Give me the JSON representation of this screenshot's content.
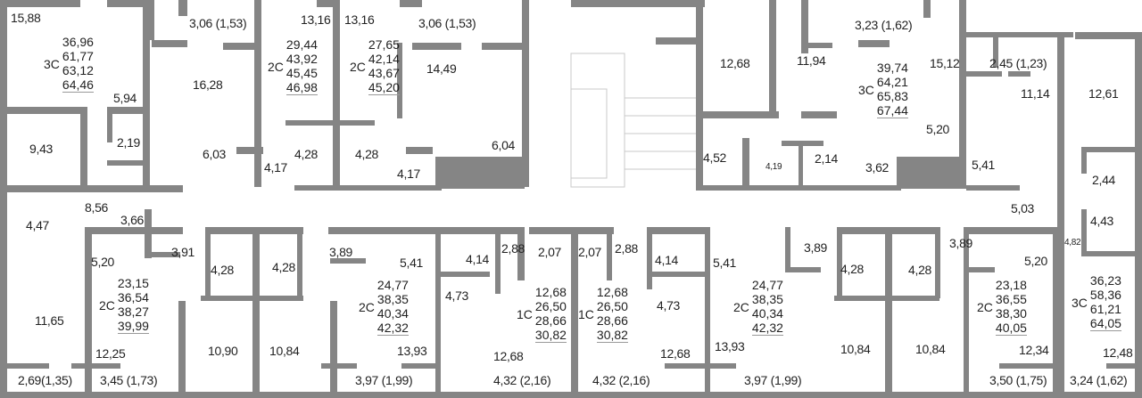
{
  "colors": {
    "wall": "#858585",
    "shaft": "#7d7d7d",
    "text": "#222222"
  },
  "rooms": {
    "r1": "15,88",
    "r2": "3,06 (1,53)",
    "r3": "16,28",
    "r4": "5,94",
    "r5": "9,43",
    "r6": "2,19",
    "r7": "6,03",
    "r8": "13,16",
    "r9": "13,16",
    "r10": "4,17",
    "r11": "4,28",
    "r12": "4,28",
    "r13": "3,06 (1,53)",
    "r14": "14,49",
    "r15": "6,04",
    "r16": "4,17",
    "r17": "12,68",
    "r18": "11,94",
    "r19": "3,23 (1,62)",
    "r20": "15,12",
    "r21": "5,20",
    "r22": "4,52",
    "r23": "4,19",
    "r24": "2,14",
    "r25": "3,62",
    "r26": "5,41",
    "r27": "2,45 (1,23)",
    "r28": "11,14",
    "r29": "12,61",
    "r30": "2,44",
    "r31": "5,03",
    "r32": "4,43",
    "r33": "4,82",
    "b1": "4,47",
    "b2": "8,56",
    "b3": "3,66",
    "b4": "5,20",
    "b5": "3,91",
    "b6": "4,28",
    "b7": "4,28",
    "b8": "11,65",
    "b9": "12,25",
    "b10": "10,90",
    "b11": "10,84",
    "b12": "2,69(1,35)",
    "b13": "3,45 (1,73)",
    "b14": "3,89",
    "b15": "5,41",
    "b16": "4,14",
    "b17": "4,73",
    "b18": "13,93",
    "b19": "3,97 (1,99)",
    "b20": "2,88",
    "b21": "2,07",
    "b22": "12,68",
    "b23": "4,32 (2,16)",
    "b24": "2,07",
    "b25": "2,88",
    "b26": "4,14",
    "b27": "4,73",
    "b28": "12,68",
    "b29": "4,32 (2,16)",
    "b30": "5,41",
    "b31": "3,89",
    "b32": "13,93",
    "b33": "3,97 (1,99)",
    "b34": "4,28",
    "b35": "4,28",
    "b36": "10,84",
    "b37": "10,84",
    "b38": "3,89",
    "b39": "5,20",
    "b40": "12,34",
    "b41": "3,50 (1,75)",
    "b42": "12,48",
    "b43": "3,24 (1,62)"
  },
  "apartments": [
    {
      "type": "3С",
      "areas": [
        "36,96",
        "61,77",
        "63,12",
        "64,46"
      ]
    },
    {
      "type": "2С",
      "areas": [
        "29,44",
        "43,92",
        "45,45",
        "46,98"
      ]
    },
    {
      "type": "2С",
      "areas": [
        "27,65",
        "42,14",
        "43,67",
        "45,20"
      ]
    },
    {
      "type": "3С",
      "areas": [
        "39,74",
        "64,21",
        "65,83",
        "67,44"
      ]
    },
    {
      "type": "2С",
      "areas": [
        "23,15",
        "36,54",
        "38,27",
        "39,99"
      ]
    },
    {
      "type": "2С",
      "areas": [
        "24,77",
        "38,35",
        "40,34",
        "42,32"
      ]
    },
    {
      "type": "1С",
      "areas": [
        "12,68",
        "26,50",
        "28,66",
        "30,82"
      ]
    },
    {
      "type": "1С",
      "areas": [
        "12,68",
        "26,50",
        "28,66",
        "30,82"
      ]
    },
    {
      "type": "2С",
      "areas": [
        "24,77",
        "38,35",
        "40,34",
        "42,32"
      ]
    },
    {
      "type": "2С",
      "areas": [
        "23,18",
        "36,55",
        "38,30",
        "40,05"
      ]
    },
    {
      "type": "3С",
      "areas": [
        "36,23",
        "58,36",
        "61,21",
        "64,05"
      ]
    }
  ]
}
